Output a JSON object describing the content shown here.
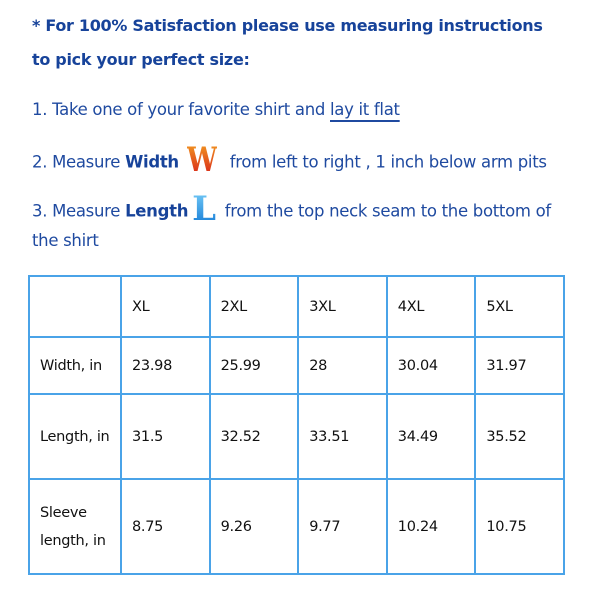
{
  "heading": {
    "line1": "* For 100% Satisfaction please use measuring instructions",
    "line2": "to pick your perfect size:"
  },
  "steps": {
    "step1": {
      "text": "1. Take one of your favorite shirt and ",
      "link": "lay it flat"
    },
    "step2": {
      "prefix": "2. Measure ",
      "bold": "Width",
      "glyph": "W",
      "suffix": " from left to right , 1 inch below arm pits"
    },
    "step3": {
      "prefix": "3. Measure ",
      "bold": "Length",
      "glyph": "L",
      "suffix": " from the top neck seam to the bottom of",
      "cont": "the shirt"
    }
  },
  "table": {
    "headers": [
      "",
      "XL",
      "2XL",
      "3XL",
      "4XL",
      "5XL"
    ],
    "rows": [
      {
        "label": "Width, in",
        "values": [
          "23.98",
          "25.99",
          "28",
          "30.04",
          "31.97"
        ]
      },
      {
        "label": "Length, in",
        "values": [
          "31.5",
          "32.52",
          "33.51",
          "34.49",
          "35.52"
        ]
      },
      {
        "label": "Sleeve length, in",
        "values": [
          "8.75",
          "9.26",
          "9.77",
          "10.24",
          "10.75"
        ]
      }
    ]
  },
  "colors": {
    "text": "#1f4aa0",
    "border": "#4aa3e8"
  }
}
